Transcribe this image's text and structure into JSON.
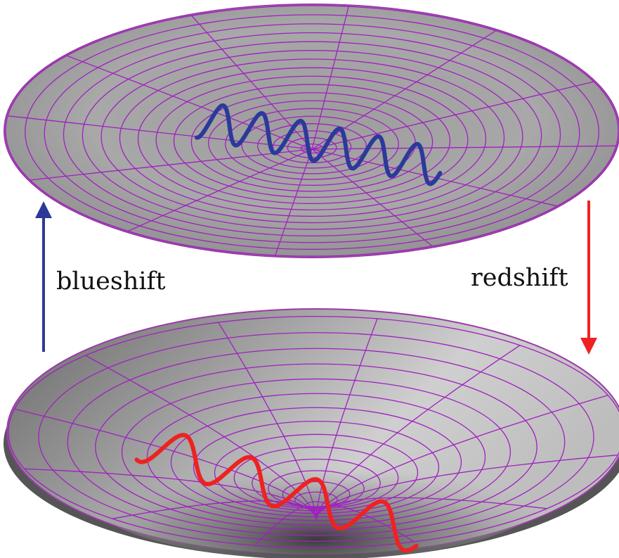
{
  "labels": {
    "blueshift": "blueshift",
    "redshift": "redshift"
  },
  "colors": {
    "grid": "#a020c0",
    "blue_wave": "#2b3a9a",
    "red_wave": "#ee2222",
    "blue_arrow": "#2b3a9a",
    "red_arrow": "#ee2222",
    "surface_light": "#d8d8d8",
    "surface_dark": "#555555"
  },
  "surfaces": [
    {
      "name": "flat-disk",
      "shape": "flat"
    },
    {
      "name": "curved-bowl",
      "shape": "concave"
    }
  ]
}
